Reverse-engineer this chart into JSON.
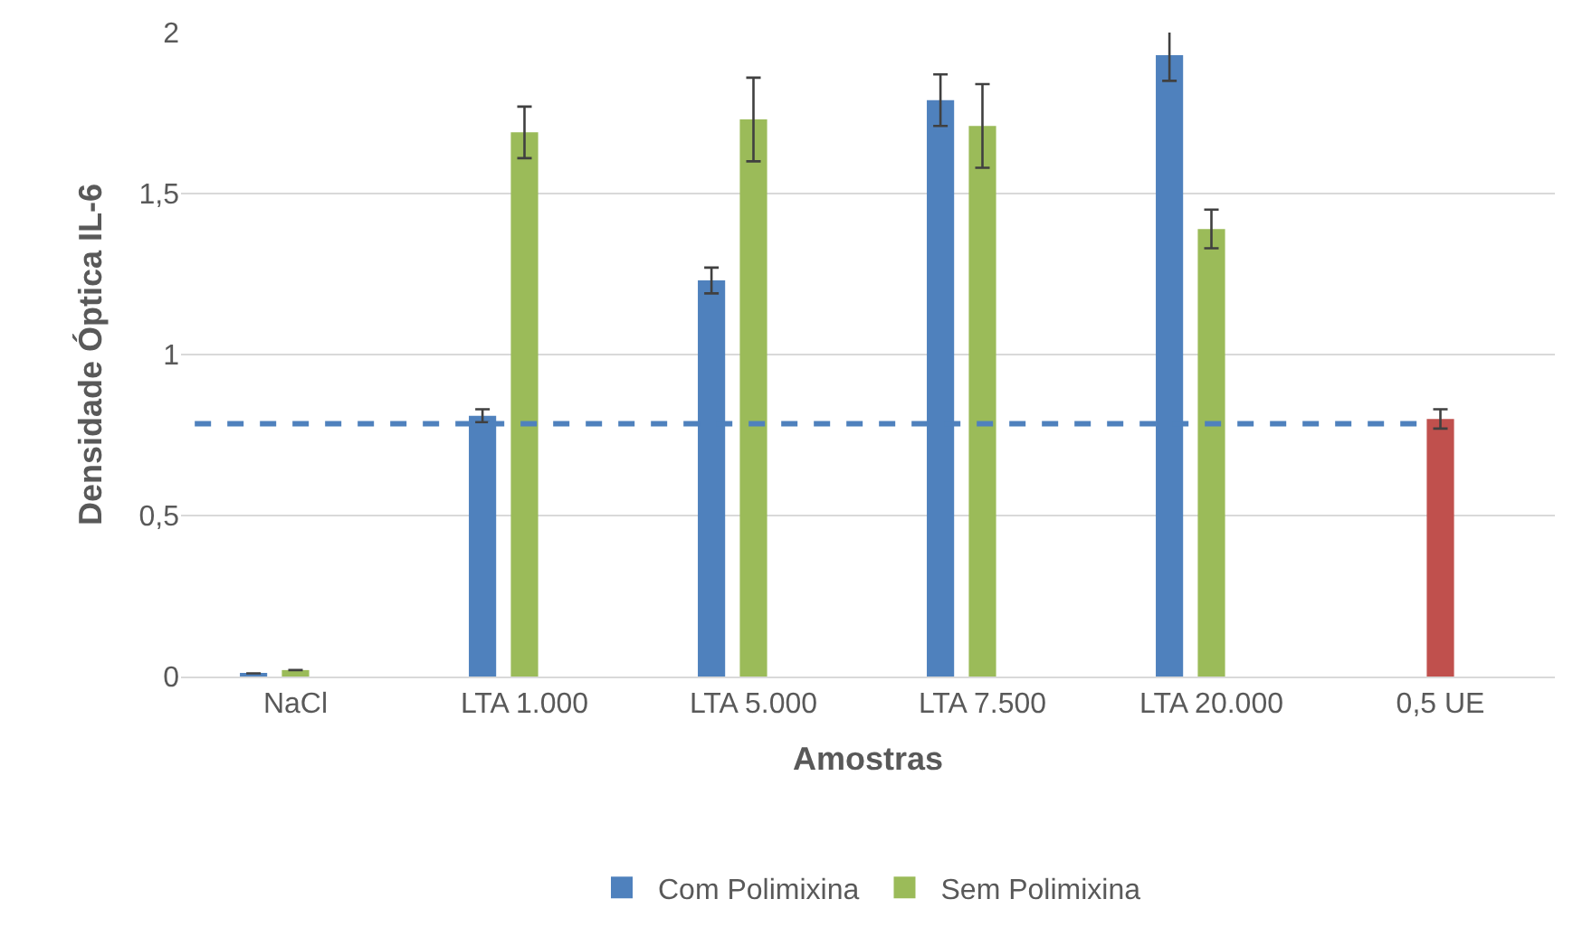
{
  "chart_data": {
    "type": "bar",
    "xlabel": "Amostras",
    "ylabel": "Densidade Óptica IL-6",
    "categories": [
      "NaCl",
      "LTA 1.000",
      "LTA 5.000",
      "LTA 7.500",
      "LTA 20.000",
      "0,5 UE"
    ],
    "series": [
      {
        "name": "Com Polimixina",
        "color": "#4f81bd",
        "values": [
          0.01,
          0.81,
          1.23,
          1.79,
          1.93,
          null
        ],
        "errors": [
          null,
          0.02,
          0.04,
          0.08,
          0.08,
          null
        ]
      },
      {
        "name": "Sem Polimixina",
        "color": "#9bbb59",
        "colors": [
          "#9bbb59",
          "#9bbb59",
          "#9bbb59",
          "#9bbb59",
          "#9bbb59",
          "#c0504d"
        ],
        "values": [
          0.02,
          1.69,
          1.73,
          1.71,
          1.39,
          0.8
        ],
        "errors": [
          null,
          0.08,
          0.13,
          0.13,
          0.06,
          0.03
        ]
      }
    ],
    "ylim": [
      0,
      2
    ],
    "yticks": [
      0,
      {
        "value": 0.5,
        "label": "0,5"
      },
      1,
      {
        "value": 1.5,
        "label": "1,5"
      },
      2
    ],
    "ref_lines": [
      {
        "axis": "y",
        "value": 0.785,
        "color": "#4f81bd",
        "line_style": "dashed"
      }
    ],
    "grid": "y",
    "legend": "bottom"
  }
}
